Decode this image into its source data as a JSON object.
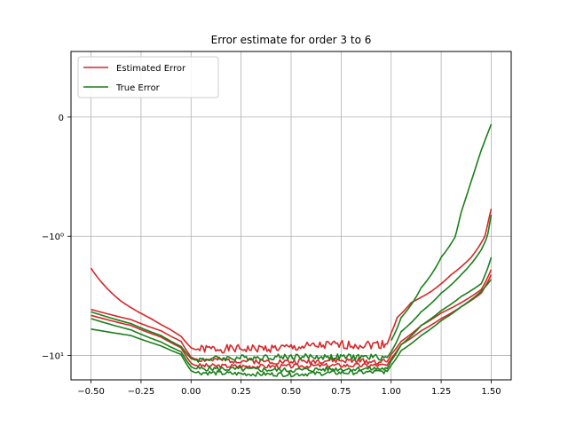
{
  "chart_data": {
    "type": "line",
    "title": "Error estimate for order 3 to 6",
    "xlabel": "",
    "ylabel": "",
    "xlim": [
      -0.6,
      1.6
    ],
    "ylim": [
      -16,
      0.55
    ],
    "y_scale": "symlog",
    "grid": true,
    "legend": "top-left",
    "legend_entries": [
      {
        "label": "Estimated Error",
        "color": "#d62728"
      },
      {
        "label": "True Error",
        "color": "#1a7f1a"
      }
    ],
    "x_ticks": [
      {
        "value": -0.5,
        "label": "−0.50"
      },
      {
        "value": -0.25,
        "label": "−0.25"
      },
      {
        "value": 0.0,
        "label": "0.00"
      },
      {
        "value": 0.25,
        "label": "0.25"
      },
      {
        "value": 0.5,
        "label": "0.50"
      },
      {
        "value": 0.75,
        "label": "0.75"
      },
      {
        "value": 1.0,
        "label": "1.00"
      },
      {
        "value": 1.25,
        "label": "1.25"
      },
      {
        "value": 1.5,
        "label": "1.50"
      }
    ],
    "y_ticks": [
      {
        "value": 0,
        "label": "0"
      },
      {
        "value": -1,
        "label": "−10⁰"
      },
      {
        "value": -10,
        "label": "−10¹"
      }
    ],
    "series": [
      {
        "color": "#d62728",
        "noise": 0.7,
        "seed": 1,
        "x": [
          -0.5,
          -0.35,
          -0.2,
          -0.1,
          -0.05,
          0.0,
          0.02,
          0.1,
          0.3,
          0.5,
          0.7,
          0.9,
          0.98,
          1.0,
          1.03,
          1.1,
          1.2,
          1.3,
          1.4,
          1.5
        ],
        "y": [
          -1.85,
          -3.5,
          -4.9,
          -6.1,
          -6.9,
          -8.6,
          -8.9,
          -8.8,
          -8.8,
          -8.6,
          -8.2,
          -8.1,
          -8.0,
          -6.5,
          -4.8,
          -3.6,
          -2.9,
          -2.1,
          -1.5,
          -0.77
        ]
      },
      {
        "color": "#d62728",
        "noise": 0.6,
        "seed": 2,
        "x": [
          -0.5,
          -0.3,
          -0.15,
          -0.05,
          0.0,
          0.02,
          0.1,
          0.3,
          0.5,
          0.7,
          0.9,
          0.98,
          1.0,
          1.05,
          1.15,
          1.25,
          1.35,
          1.45,
          1.5
        ],
        "y": [
          -4.1,
          -5.0,
          -6.2,
          -7.6,
          -10.3,
          -10.7,
          -10.9,
          -11.1,
          -11.3,
          -11.0,
          -11.2,
          -11.3,
          -9.8,
          -7.6,
          -5.6,
          -4.4,
          -3.6,
          -2.8,
          -1.9
        ]
      },
      {
        "color": "#d62728",
        "noise": 0.5,
        "seed": 3,
        "x": [
          -0.5,
          -0.3,
          -0.15,
          -0.05,
          0.0,
          0.02,
          0.1,
          0.3,
          0.5,
          0.7,
          0.9,
          0.98,
          1.0,
          1.05,
          1.15,
          1.25,
          1.35,
          1.45,
          1.5
        ],
        "y": [
          -4.6,
          -5.6,
          -7.0,
          -8.6,
          -11.6,
          -12.1,
          -12.2,
          -12.3,
          -12.3,
          -12.1,
          -12.1,
          -12.1,
          -10.6,
          -8.1,
          -6.2,
          -4.9,
          -3.9,
          -3.0,
          -2.1
        ]
      },
      {
        "color": "#1a7f1a",
        "noise": 0.6,
        "seed": 4,
        "x": [
          -0.5,
          -0.3,
          -0.15,
          -0.05,
          0.0,
          0.02,
          0.1,
          0.3,
          0.5,
          0.7,
          0.9,
          0.98,
          1.0,
          1.05,
          1.15,
          1.25,
          1.35,
          1.45,
          1.5
        ],
        "y": [
          -4.3,
          -5.4,
          -6.8,
          -8.4,
          -10.6,
          -10.9,
          -10.6,
          -10.4,
          -10.2,
          -10.3,
          -10.3,
          -10.4,
          -9.3,
          -6.3,
          -4.3,
          -3.0,
          -2.1,
          -1.3,
          -0.82
        ]
      },
      {
        "color": "#1a7f1a",
        "noise": 0.6,
        "seed": 5,
        "x": [
          -0.5,
          -0.3,
          -0.15,
          -0.05,
          0.0,
          0.02,
          0.1,
          0.3,
          0.5,
          0.7,
          0.9,
          0.98,
          1.0,
          1.05,
          1.15,
          1.25,
          1.35,
          1.45,
          1.5
        ],
        "y": [
          -4.9,
          -6.1,
          -7.7,
          -9.3,
          -12.4,
          -12.9,
          -12.9,
          -13.1,
          -13.3,
          -13.0,
          -12.9,
          -12.9,
          -11.1,
          -8.1,
          -5.6,
          -4.2,
          -3.2,
          -2.5,
          -1.5
        ]
      },
      {
        "color": "#1a7f1a",
        "noise": 0.6,
        "seed": 6,
        "x": [
          -0.5,
          -0.3,
          -0.15,
          -0.05,
          0.0,
          0.02,
          0.1,
          0.3,
          0.5,
          0.7,
          0.9,
          0.98,
          1.0,
          1.05,
          1.15,
          1.25,
          1.35,
          1.45,
          1.5
        ],
        "y": [
          -6.0,
          -6.8,
          -8.3,
          -9.8,
          -13.4,
          -13.9,
          -14.0,
          -14.3,
          -14.4,
          -14.0,
          -13.8,
          -13.6,
          -12.1,
          -9.1,
          -6.8,
          -5.1,
          -3.9,
          -2.9,
          -2.3
        ]
      },
      {
        "color": "#1a7f1a",
        "noise": 0.0,
        "seed": 7,
        "x": [
          1.0,
          1.05,
          1.15,
          1.25,
          1.35,
          1.45,
          1.5
        ],
        "y": [
          -7.5,
          -4.8,
          -2.7,
          -1.5,
          -0.8,
          -0.28,
          -0.06
        ]
      }
    ]
  }
}
